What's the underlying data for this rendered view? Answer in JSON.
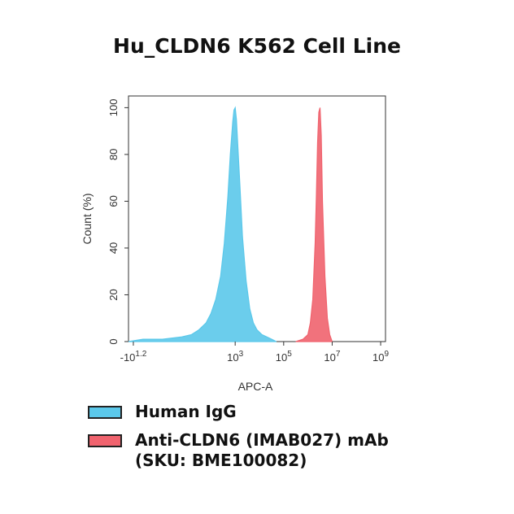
{
  "chart_data": {
    "type": "area",
    "title": "Hu_CLDN6 K562 Cell Line",
    "xlabel": "APC-A",
    "ylabel": "Count (%)",
    "xscale": "biexponential",
    "xlim_log10": [
      -1.4,
      9.2
    ],
    "ylim": [
      0,
      105
    ],
    "x_ticks": [
      {
        "label": "-10",
        "sup": "1.2",
        "pos": -1.2
      },
      {
        "label": "10",
        "sup": "3",
        "pos": 3
      },
      {
        "label": "10",
        "sup": "5",
        "pos": 5
      },
      {
        "label": "10",
        "sup": "7",
        "pos": 7
      },
      {
        "label": "10",
        "sup": "9",
        "pos": 9
      }
    ],
    "y_ticks": [
      0,
      20,
      40,
      60,
      80,
      100
    ],
    "legend_position": "bottom",
    "series": [
      {
        "name": "Human IgG",
        "color": "#5bc8ea",
        "log10_x": [
          -1.4,
          -0.8,
          0.0,
          0.8,
          1.2,
          1.5,
          1.8,
          2.0,
          2.2,
          2.4,
          2.55,
          2.7,
          2.8,
          2.9,
          2.95,
          3.0,
          3.05,
          3.1,
          3.2,
          3.3,
          3.45,
          3.6,
          3.75,
          3.9,
          4.1,
          4.3,
          4.5,
          4.7
        ],
        "y": [
          0,
          1,
          1,
          2,
          3,
          5,
          8,
          12,
          18,
          28,
          42,
          62,
          80,
          94,
          99,
          100,
          95,
          85,
          66,
          45,
          26,
          14,
          8,
          5,
          3,
          2,
          1,
          0
        ]
      },
      {
        "name": "Anti-CLDN6 (IMAB027) mAb (SKU: BME100082)",
        "color": "#f0636e",
        "log10_x": [
          5.5,
          5.8,
          6.0,
          6.1,
          6.2,
          6.3,
          6.35,
          6.4,
          6.45,
          6.5,
          6.55,
          6.6,
          6.7,
          6.8,
          6.9,
          7.0
        ],
        "y": [
          0,
          1,
          3,
          8,
          18,
          42,
          62,
          85,
          98,
          100,
          88,
          60,
          28,
          10,
          3,
          0
        ]
      }
    ]
  }
}
